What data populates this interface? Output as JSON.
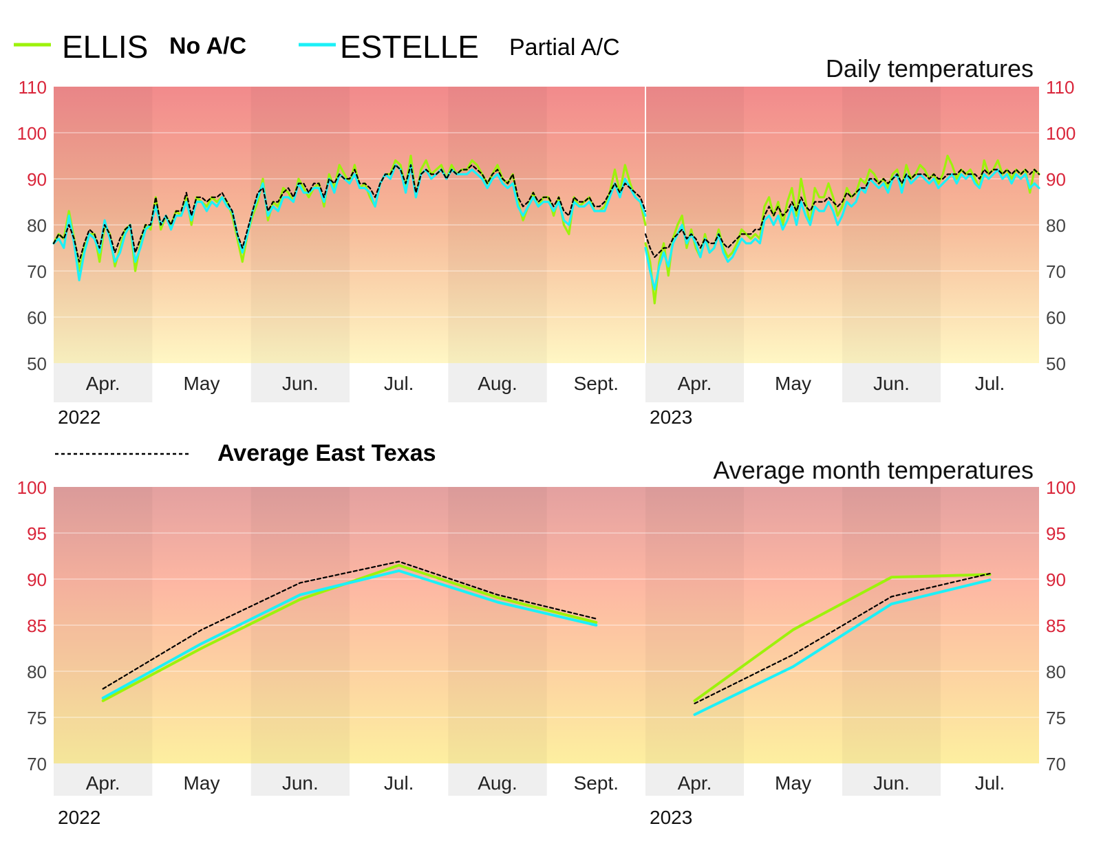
{
  "legend": {
    "ellis": {
      "name": "ELLIS",
      "note": "No A/C",
      "color": "#9df20b"
    },
    "estelle": {
      "name": "ESTELLE",
      "note": "Partial A/C",
      "color": "#1cf0f7"
    },
    "average": {
      "name": "Average East Texas",
      "color": "#000000"
    }
  },
  "chart_data": [
    {
      "type": "line",
      "title": "Daily temperatures",
      "ylim": [
        50,
        110
      ],
      "yticks": [
        50,
        60,
        70,
        80,
        90,
        100,
        110
      ],
      "hot_ticks": [
        90,
        100,
        110
      ],
      "periods": [
        {
          "year": "2022",
          "months": [
            "Apr.",
            "May",
            "Jun.",
            "Jul.",
            "Aug.",
            "Sept."
          ]
        },
        {
          "year": "2023",
          "months": [
            "Apr.",
            "May",
            "Jun.",
            "Jul."
          ]
        }
      ],
      "series": [
        {
          "name": "ELLIS",
          "key": "ellis",
          "values": [
            [
              76,
              78,
              77,
              83,
              77,
              70,
              75,
              78,
              78,
              72,
              80,
              78,
              71,
              75,
              79,
              80,
              70,
              76,
              80,
              79,
              86,
              79,
              82,
              80,
              83,
              82,
              86,
              80,
              86,
              85,
              84,
              86,
              85,
              86,
              85,
              82,
              77,
              72,
              78,
              82,
              85,
              90,
              81,
              85,
              84,
              88,
              87,
              85,
              90,
              88,
              86,
              88,
              89,
              84,
              91,
              88,
              93,
              91,
              89,
              93,
              88,
              89,
              86,
              84,
              89,
              91,
              91,
              94,
              93,
              88,
              95,
              86,
              92,
              94,
              91,
              92,
              93,
              90,
              93,
              91,
              92,
              92,
              94,
              93,
              91,
              89,
              91,
              93,
              90,
              89,
              91,
              85,
              81,
              84,
              87,
              84,
              86,
              86,
              82,
              86,
              80,
              78,
              86,
              84,
              85,
              86,
              83,
              83,
              84,
              87,
              92,
              87,
              93,
              89,
              86,
              85,
              80
            ],
            [
              76,
              72,
              63,
              72,
              76,
              69,
              77,
              80,
              82,
              75,
              79,
              75,
              73,
              78,
              74,
              75,
              79,
              75,
              73,
              74,
              76,
              79,
              78,
              77,
              78,
              77,
              84,
              86,
              82,
              85,
              80,
              85,
              88,
              82,
              90,
              85,
              80,
              88,
              86,
              86,
              89,
              86,
              82,
              84,
              88,
              86,
              87,
              90,
              89,
              92,
              91,
              89,
              90,
              88,
              91,
              92,
              88,
              93,
              90,
              91,
              93,
              92,
              90,
              91,
              89,
              91,
              95,
              93,
              90,
              92,
              91,
              92,
              90,
              88,
              94,
              91,
              92,
              94,
              91,
              92,
              90,
              92,
              91,
              92,
              87,
              92,
              91
            ]
          ]
        },
        {
          "name": "ESTELLE",
          "key": "estelle",
          "values": [
            [
              76,
              77,
              75,
              82,
              76,
              68,
              74,
              78,
              77,
              74,
              81,
              77,
              72,
              74,
              78,
              80,
              72,
              75,
              79,
              80,
              84,
              80,
              82,
              79,
              82,
              82,
              85,
              81,
              85,
              85,
              83,
              85,
              84,
              86,
              84,
              83,
              78,
              74,
              78,
              83,
              86,
              89,
              82,
              84,
              83,
              86,
              86,
              85,
              89,
              87,
              87,
              88,
              88,
              85,
              90,
              87,
              91,
              90,
              89,
              91,
              88,
              88,
              87,
              84,
              89,
              91,
              90,
              93,
              92,
              87,
              93,
              86,
              91,
              92,
              90,
              91,
              92,
              90,
              92,
              91,
              91,
              91,
              92,
              91,
              90,
              88,
              90,
              91,
              89,
              88,
              89,
              84,
              82,
              84,
              86,
              84,
              85,
              85,
              83,
              85,
              81,
              80,
              85,
              84,
              84,
              85,
              83,
              83,
              83,
              86,
              89,
              86,
              90,
              88,
              86,
              85,
              82
            ],
            [
              75,
              70,
              66,
              71,
              74,
              71,
              76,
              78,
              80,
              76,
              78,
              76,
              73,
              77,
              74,
              75,
              78,
              74,
              72,
              73,
              75,
              77,
              76,
              76,
              77,
              76,
              81,
              82,
              80,
              82,
              79,
              81,
              84,
              80,
              85,
              82,
              80,
              84,
              83,
              83,
              85,
              83,
              80,
              82,
              85,
              84,
              85,
              88,
              87,
              90,
              89,
              88,
              89,
              87,
              90,
              91,
              87,
              91,
              89,
              90,
              91,
              90,
              89,
              90,
              88,
              89,
              90,
              91,
              89,
              91,
              90,
              91,
              89,
              88,
              91,
              90,
              91,
              92,
              90,
              91,
              89,
              91,
              90,
              91,
              88,
              89,
              88
            ]
          ]
        },
        {
          "name": "Average East Texas",
          "key": "average",
          "values": [
            [
              76,
              78,
              77,
              80,
              77,
              72,
              76,
              79,
              78,
              75,
              80,
              78,
              74,
              77,
              79,
              80,
              74,
              77,
              80,
              80,
              86,
              80,
              82,
              80,
              83,
              83,
              87,
              82,
              86,
              86,
              85,
              86,
              86,
              87,
              85,
              83,
              78,
              75,
              79,
              83,
              87,
              88,
              83,
              85,
              85,
              87,
              88,
              86,
              89,
              89,
              87,
              89,
              89,
              86,
              90,
              89,
              91,
              90,
              90,
              92,
              89,
              89,
              88,
              86,
              89,
              91,
              91,
              93,
              92,
              89,
              93,
              87,
              91,
              92,
              91,
              91,
              92,
              90,
              92,
              91,
              92,
              92,
              93,
              92,
              91,
              89,
              91,
              92,
              90,
              89,
              91,
              86,
              84,
              85,
              87,
              85,
              86,
              86,
              84,
              86,
              83,
              82,
              86,
              85,
              85,
              86,
              84,
              84,
              85,
              87,
              89,
              87,
              89,
              88,
              87,
              86,
              83
            ],
            [
              78,
              75,
              73,
              74,
              75,
              75,
              77,
              78,
              79,
              77,
              78,
              77,
              75,
              77,
              76,
              76,
              78,
              76,
              75,
              76,
              77,
              78,
              78,
              78,
              79,
              79,
              82,
              84,
              82,
              84,
              82,
              83,
              85,
              83,
              86,
              84,
              83,
              85,
              85,
              85,
              86,
              85,
              84,
              85,
              87,
              86,
              87,
              88,
              88,
              90,
              90,
              89,
              90,
              89,
              90,
              91,
              89,
              91,
              90,
              91,
              91,
              91,
              90,
              91,
              90,
              90,
              91,
              91,
              91,
              92,
              91,
              91,
              91,
              90,
              92,
              91,
              92,
              92,
              91,
              92,
              91,
              92,
              91,
              92,
              91,
              92,
              91
            ]
          ]
        }
      ]
    },
    {
      "type": "line",
      "title": "Average month temperatures",
      "ylim": [
        70,
        100
      ],
      "yticks": [
        70,
        75,
        80,
        85,
        90,
        95,
        100
      ],
      "hot_ticks": [
        85,
        90,
        95,
        100
      ],
      "periods": [
        {
          "year": "2022",
          "months": [
            "Apr.",
            "May",
            "Jun.",
            "Jul.",
            "Aug.",
            "Sept."
          ]
        },
        {
          "year": "2023",
          "months": [
            "Apr.",
            "May",
            "Jun.",
            "Jul."
          ]
        }
      ],
      "series": [
        {
          "name": "ELLIS",
          "key": "ellis",
          "values": [
            [
              76.8,
              82.5,
              87.8,
              91.5,
              88.0,
              85.3
            ],
            [
              76.8,
              84.5,
              90.2,
              90.5
            ]
          ]
        },
        {
          "name": "ESTELLE",
          "key": "estelle",
          "values": [
            [
              77.1,
              83.0,
              88.3,
              90.9,
              87.5,
              85.0
            ],
            [
              75.3,
              80.5,
              87.3,
              89.9
            ]
          ]
        },
        {
          "name": "Average East Texas",
          "key": "average",
          "values": [
            [
              78.1,
              84.5,
              89.6,
              91.9,
              88.3,
              85.7
            ],
            [
              76.5,
              81.8,
              88.1,
              90.6
            ]
          ]
        }
      ]
    }
  ]
}
